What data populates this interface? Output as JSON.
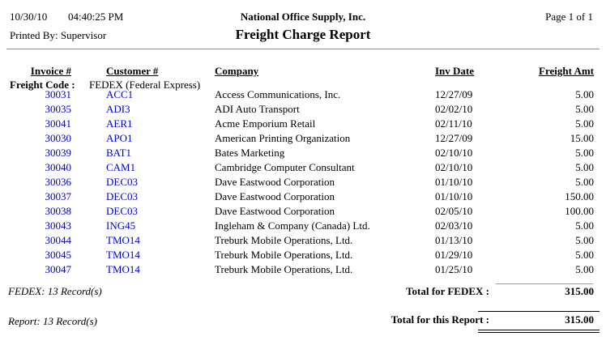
{
  "header": {
    "date": "10/30/10",
    "time": "04:40:25 PM",
    "printed_by": "Printed By: Supervisor",
    "company": "National Office Supply, Inc.",
    "title": "Freight Charge Report",
    "page": "Page 1 of  1"
  },
  "table": {
    "columns": {
      "invoice": "Invoice #",
      "customer": "Customer #",
      "company": "Company",
      "inv_date": "Inv Date",
      "freight_amt": "Freight Amt"
    },
    "group": {
      "label": "Freight Code :",
      "value": "FEDEX (Federal Express)"
    },
    "rows": [
      {
        "invoice": "30031",
        "customer": "ACC1",
        "company": "Access Communications, Inc.",
        "inv_date": "12/27/09",
        "freight_amt": "5.00"
      },
      {
        "invoice": "30035",
        "customer": "ADI3",
        "company": "ADI Auto Transport",
        "inv_date": "02/02/10",
        "freight_amt": "5.00"
      },
      {
        "invoice": "30041",
        "customer": "AER1",
        "company": "Acme Emporium Retail",
        "inv_date": "02/11/10",
        "freight_amt": "5.00"
      },
      {
        "invoice": "30030",
        "customer": "APO1",
        "company": "American Printing Organization",
        "inv_date": "12/27/09",
        "freight_amt": "15.00"
      },
      {
        "invoice": "30039",
        "customer": "BAT1",
        "company": "Bates Marketing",
        "inv_date": "02/10/10",
        "freight_amt": "5.00"
      },
      {
        "invoice": "30040",
        "customer": "CAM1",
        "company": "Cambridge Computer Consultant",
        "inv_date": "02/10/10",
        "freight_amt": "5.00"
      },
      {
        "invoice": "30036",
        "customer": "DEC03",
        "company": "Dave Eastwood Corporation",
        "inv_date": "01/10/10",
        "freight_amt": "5.00"
      },
      {
        "invoice": "30037",
        "customer": "DEC03",
        "company": "Dave Eastwood Corporation",
        "inv_date": "01/10/10",
        "freight_amt": "150.00"
      },
      {
        "invoice": "30038",
        "customer": "DEC03",
        "company": "Dave Eastwood Corporation",
        "inv_date": "02/05/10",
        "freight_amt": "100.00"
      },
      {
        "invoice": "30043",
        "customer": "ING45",
        "company": "Ingleham & Company (Canada) Ltd.",
        "inv_date": "02/03/10",
        "freight_amt": "5.00"
      },
      {
        "invoice": "30044",
        "customer": "TMO14",
        "company": "Treburk Mobile Operations, Ltd.",
        "inv_date": "01/13/10",
        "freight_amt": "5.00"
      },
      {
        "invoice": "30045",
        "customer": "TMO14",
        "company": "Treburk Mobile Operations, Ltd.",
        "inv_date": "01/29/10",
        "freight_amt": "5.00"
      },
      {
        "invoice": "30047",
        "customer": "TMO14",
        "company": "Treburk Mobile Operations, Ltd.",
        "inv_date": "01/25/10",
        "freight_amt": "5.00"
      }
    ]
  },
  "summary": {
    "group_records": "FEDEX: 13 Record(s)",
    "group_total_label": "Total for FEDEX :",
    "group_total": "315.00",
    "report_records": "Report: 13 Record(s)",
    "report_total_label": "Total for this Report :",
    "report_total": "315.00"
  },
  "colors": {
    "link_blue": "#0000CC",
    "rule_gray": "#8A8A8A"
  }
}
